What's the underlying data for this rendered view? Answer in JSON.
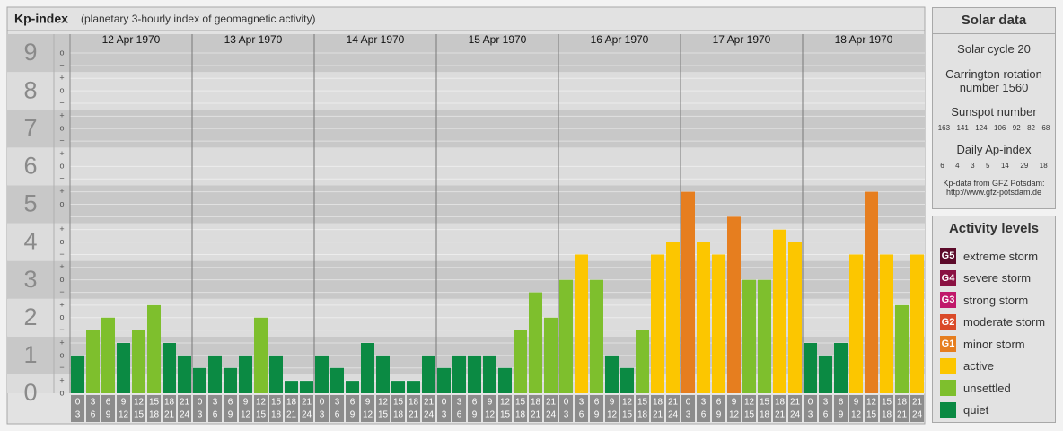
{
  "chart_data": {
    "type": "bar",
    "title": "Kp-index",
    "subtitle": "(planetary 3-hourly index of geomagnetic activity)",
    "days": [
      "12 Apr 1970",
      "13 Apr 1970",
      "14 Apr 1970",
      "15 Apr 1970",
      "16 Apr 1970",
      "17 Apr 1970",
      "18 Apr 1970"
    ],
    "hour_ranges": [
      [
        0,
        3
      ],
      [
        3,
        6
      ],
      [
        6,
        9
      ],
      [
        9,
        12
      ],
      [
        12,
        15
      ],
      [
        15,
        18
      ],
      [
        18,
        21
      ],
      [
        21,
        24
      ]
    ],
    "values": [
      1,
      1.67,
      2,
      1.33,
      1.67,
      2.33,
      1.33,
      1,
      0.67,
      1,
      0.67,
      1,
      2,
      1,
      0.33,
      0.33,
      1,
      0.67,
      0.33,
      1.33,
      1,
      0.33,
      0.33,
      1,
      0.67,
      1,
      1,
      1,
      0.67,
      1.67,
      2.67,
      2,
      3,
      3.67,
      3,
      1,
      0.67,
      1.67,
      3.67,
      4,
      5.33,
      4,
      3.67,
      4.67,
      3,
      3,
      4.33,
      4,
      1.33,
      1,
      1.33,
      3.67,
      5.33,
      3.67,
      2.33,
      3.67
    ],
    "colors": [
      "#0b8a43",
      "#7ebf2d",
      "#7ebf2d",
      "#0b8a43",
      "#7ebf2d",
      "#7ebf2d",
      "#0b8a43",
      "#0b8a43",
      "#0b8a43",
      "#0b8a43",
      "#0b8a43",
      "#0b8a43",
      "#7ebf2d",
      "#0b8a43",
      "#0b8a43",
      "#0b8a43",
      "#0b8a43",
      "#0b8a43",
      "#0b8a43",
      "#0b8a43",
      "#0b8a43",
      "#0b8a43",
      "#0b8a43",
      "#0b8a43",
      "#0b8a43",
      "#0b8a43",
      "#0b8a43",
      "#0b8a43",
      "#0b8a43",
      "#7ebf2d",
      "#7ebf2d",
      "#7ebf2d",
      "#7ebf2d",
      "#fcc600",
      "#7ebf2d",
      "#0b8a43",
      "#0b8a43",
      "#7ebf2d",
      "#fcc600",
      "#fcc600",
      "#e67e1f",
      "#fcc600",
      "#fcc600",
      "#e67e1f",
      "#7ebf2d",
      "#7ebf2d",
      "#fcc600",
      "#fcc600",
      "#0b8a43",
      "#0b8a43",
      "#0b8a43",
      "#fcc600",
      "#e67e1f",
      "#fcc600",
      "#7ebf2d",
      "#fcc600"
    ],
    "ylim": [
      0,
      9.5
    ],
    "yticks": [
      0,
      1,
      2,
      3,
      4,
      5,
      6,
      7,
      8,
      9
    ],
    "minor_yticks": [
      {
        "value": 0,
        "label": "o"
      },
      {
        "value": 0.33,
        "label": "+"
      },
      {
        "value": 0.67,
        "label": "−"
      },
      {
        "value": 1,
        "label": "o"
      },
      {
        "value": 1.33,
        "label": "+"
      },
      {
        "value": 1.67,
        "label": "−"
      },
      {
        "value": 2,
        "label": "o"
      },
      {
        "value": 2.33,
        "label": "+"
      },
      {
        "value": 2.67,
        "label": "−"
      },
      {
        "value": 3,
        "label": "o"
      },
      {
        "value": 3.33,
        "label": "+"
      },
      {
        "value": 3.67,
        "label": "−"
      },
      {
        "value": 4,
        "label": "o"
      },
      {
        "value": 4.33,
        "label": "+"
      },
      {
        "value": 4.67,
        "label": "−"
      },
      {
        "value": 5,
        "label": "o"
      },
      {
        "value": 5.33,
        "label": "+"
      },
      {
        "value": 5.67,
        "label": "−"
      },
      {
        "value": 6,
        "label": "o"
      },
      {
        "value": 6.33,
        "label": "+"
      },
      {
        "value": 6.67,
        "label": "−"
      },
      {
        "value": 7,
        "label": "o"
      },
      {
        "value": 7.33,
        "label": "+"
      },
      {
        "value": 7.67,
        "label": "−"
      },
      {
        "value": 8,
        "label": "o"
      },
      {
        "value": 8.33,
        "label": "+"
      },
      {
        "value": 8.67,
        "label": "−"
      },
      {
        "value": 9,
        "label": "o"
      }
    ],
    "grid": true
  },
  "solar": {
    "title": "Solar data",
    "cycle": "Solar cycle 20",
    "carrington": "Carrington rotation number 1560",
    "sunspot_label": "Sunspot number",
    "sunspot": [
      163,
      141,
      124,
      106,
      92,
      82,
      68
    ],
    "ap_label": "Daily Ap-index",
    "ap": [
      6,
      4,
      3,
      5,
      14,
      29,
      18
    ],
    "source": "Kp-data from GFZ Potsdam:",
    "url": "http://www.gfz-potsdam.de"
  },
  "legend": {
    "title": "Activity levels",
    "items": [
      {
        "code": "G5",
        "label": "extreme storm",
        "color": "#5c0b2a"
      },
      {
        "code": "G4",
        "label": "severe storm",
        "color": "#8a1142"
      },
      {
        "code": "G3",
        "label": "strong storm",
        "color": "#c0186a"
      },
      {
        "code": "G2",
        "label": "moderate storm",
        "color": "#da4a28"
      },
      {
        "code": "G1",
        "label": "minor storm",
        "color": "#e67e1f"
      },
      {
        "label": "active",
        "color": "#fcc600"
      },
      {
        "label": "unsettled",
        "color": "#7ebf2d"
      },
      {
        "label": "quiet",
        "color": "#0b8a43"
      }
    ]
  }
}
